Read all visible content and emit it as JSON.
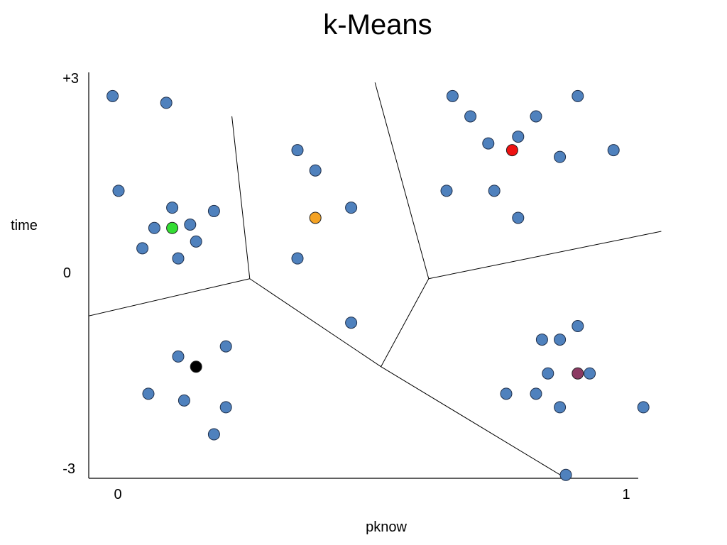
{
  "chart_data": {
    "type": "scatter",
    "title": "k-Means",
    "xlabel": "pknow",
    "ylabel": "time",
    "xlim": [
      0,
      1
    ],
    "ylim": [
      -3,
      3
    ],
    "x_ticks": [
      "0",
      "1"
    ],
    "y_ticks": [
      "+3",
      "0",
      "-3"
    ],
    "grid": false,
    "legend": "none",
    "colors": {
      "point_fill": "#4f81bd",
      "point_stroke": "#1f2f4a",
      "centroid_green": "#33dd33",
      "centroid_orange": "#f4a223",
      "centroid_red": "#ee1111",
      "centroid_black": "#000000",
      "centroid_maroon": "#8b3a62",
      "axis": "#000000",
      "boundary": "#000000"
    },
    "points": [
      {
        "x": 0.04,
        "y": 2.65
      },
      {
        "x": 0.13,
        "y": 2.55
      },
      {
        "x": 0.05,
        "y": 1.25
      },
      {
        "x": 0.14,
        "y": 1.0
      },
      {
        "x": 0.11,
        "y": 0.7
      },
      {
        "x": 0.17,
        "y": 0.75
      },
      {
        "x": 0.21,
        "y": 0.95
      },
      {
        "x": 0.09,
        "y": 0.4
      },
      {
        "x": 0.18,
        "y": 0.5
      },
      {
        "x": 0.15,
        "y": 0.25
      },
      {
        "x": 0.35,
        "y": 1.85
      },
      {
        "x": 0.38,
        "y": 1.55
      },
      {
        "x": 0.44,
        "y": 1.0
      },
      {
        "x": 0.35,
        "y": 0.25
      },
      {
        "x": 0.44,
        "y": -0.7
      },
      {
        "x": 0.61,
        "y": 2.65
      },
      {
        "x": 0.64,
        "y": 2.35
      },
      {
        "x": 0.67,
        "y": 1.95
      },
      {
        "x": 0.72,
        "y": 2.05
      },
      {
        "x": 0.75,
        "y": 2.35
      },
      {
        "x": 0.82,
        "y": 2.65
      },
      {
        "x": 0.6,
        "y": 1.25
      },
      {
        "x": 0.68,
        "y": 1.25
      },
      {
        "x": 0.79,
        "y": 1.75
      },
      {
        "x": 0.88,
        "y": 1.85
      },
      {
        "x": 0.72,
        "y": 0.85
      },
      {
        "x": 0.15,
        "y": -1.2
      },
      {
        "x": 0.23,
        "y": -1.05
      },
      {
        "x": 0.1,
        "y": -1.75
      },
      {
        "x": 0.16,
        "y": -1.85
      },
      {
        "x": 0.23,
        "y": -1.95
      },
      {
        "x": 0.21,
        "y": -2.35
      },
      {
        "x": 0.76,
        "y": -0.95
      },
      {
        "x": 0.79,
        "y": -0.95
      },
      {
        "x": 0.82,
        "y": -0.75
      },
      {
        "x": 0.77,
        "y": -1.45
      },
      {
        "x": 0.84,
        "y": -1.45
      },
      {
        "x": 0.7,
        "y": -1.75
      },
      {
        "x": 0.75,
        "y": -1.75
      },
      {
        "x": 0.79,
        "y": -1.95
      },
      {
        "x": 0.93,
        "y": -1.95
      },
      {
        "x": 0.8,
        "y": -2.95
      }
    ],
    "centroids": [
      {
        "x": 0.14,
        "y": 0.7,
        "color": "#33dd33"
      },
      {
        "x": 0.38,
        "y": 0.85,
        "color": "#f4a223"
      },
      {
        "x": 0.71,
        "y": 1.85,
        "color": "#ee1111"
      },
      {
        "x": 0.18,
        "y": -1.35,
        "color": "#000000"
      },
      {
        "x": 0.82,
        "y": -1.45,
        "color": "#8b3a62"
      }
    ],
    "boundaries": [
      [
        [
          0.24,
          2.35
        ],
        [
          0.27,
          -0.05
        ]
      ],
      [
        [
          0.0,
          -0.6
        ],
        [
          0.27,
          -0.05
        ]
      ],
      [
        [
          0.27,
          -0.05
        ],
        [
          0.49,
          -1.35
        ]
      ],
      [
        [
          0.49,
          -1.35
        ],
        [
          0.8,
          -3.0
        ]
      ],
      [
        [
          0.49,
          -1.35
        ],
        [
          0.57,
          -0.05
        ]
      ],
      [
        [
          0.57,
          -0.05
        ],
        [
          0.48,
          2.85
        ]
      ],
      [
        [
          0.57,
          -0.05
        ],
        [
          0.96,
          0.65
        ]
      ]
    ]
  }
}
